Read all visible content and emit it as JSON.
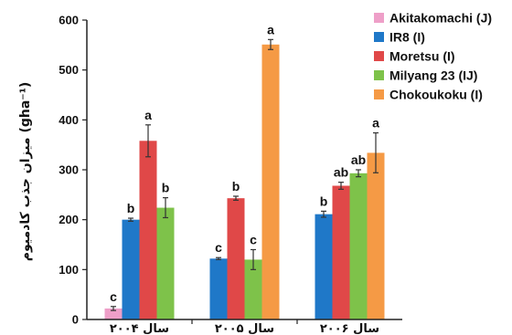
{
  "chart_data": {
    "type": "bar",
    "ylabel": "میزان جذب کادمیوم (gha⁻¹)",
    "ylim": [
      0,
      600
    ],
    "yticks": [
      0,
      100,
      200,
      300,
      400,
      500,
      600
    ],
    "categories": [
      "سال ۲۰۰۴",
      "سال ۲۰۰۵",
      "سال ۲۰۰۶"
    ],
    "legend_position": "top-right",
    "series": [
      {
        "name": "Akitakomachi (J)",
        "color": "#ee9fc8",
        "values": [
          22,
          null,
          null
        ],
        "errors": [
          4,
          null,
          null
        ],
        "labels": [
          "c",
          null,
          null
        ]
      },
      {
        "name": "IR8 (I)",
        "color": "#1f78c8",
        "values": [
          200,
          122,
          211
        ],
        "errors": [
          3,
          2,
          6
        ],
        "labels": [
          "b",
          "c",
          "b"
        ]
      },
      {
        "name": "Moretsu (I)",
        "color": "#e04848",
        "values": [
          358,
          243,
          268
        ],
        "errors": [
          32,
          4,
          7
        ],
        "labels": [
          "a",
          "b",
          "ab"
        ]
      },
      {
        "name": "Milyang 23 (IJ)",
        "color": "#7ec24a",
        "values": [
          224,
          120,
          293
        ],
        "errors": [
          20,
          20,
          7
        ],
        "labels": [
          "b",
          "c",
          "ab"
        ]
      },
      {
        "name": "Chokoukoku (I)",
        "color": "#f59a45",
        "values": [
          null,
          551,
          334
        ],
        "errors": [
          null,
          10,
          40
        ],
        "labels": [
          null,
          "a",
          "a"
        ]
      }
    ]
  }
}
